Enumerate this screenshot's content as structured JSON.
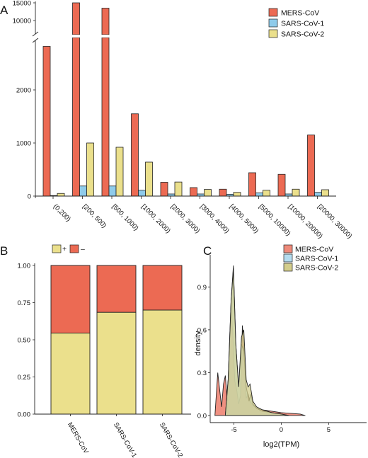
{
  "colors": {
    "MERS-CoV": "#ec6a53",
    "SARS-CoV-1": "#8fcbea",
    "SARS-CoV-2": "#ebe08c",
    "density_MERS-CoV": "#ee8a7a",
    "density_SARS-CoV-1": "#b4dcef",
    "density_SARS-CoV-2": "#d3cd8c"
  },
  "chart_data": [
    {
      "panel": "A",
      "type": "bar",
      "categories": [
        "(0,200)",
        "[200, 500)",
        "[500, 1000)",
        "[1000, 2000)",
        "[2000, 3000)",
        "[3000, 4000)",
        "[4000, 5000)",
        "[5000, 10000)",
        "[10000, 20000)",
        "[20000, 30000)"
      ],
      "series": [
        {
          "name": "MERS-CoV",
          "values": [
            2820,
            15000,
            13500,
            1550,
            260,
            160,
            130,
            440,
            410,
            1150
          ]
        },
        {
          "name": "SARS-CoV-1",
          "values": [
            10,
            190,
            190,
            110,
            40,
            40,
            35,
            60,
            40,
            70
          ]
        },
        {
          "name": "SARS-CoV-2",
          "values": [
            50,
            1000,
            920,
            640,
            265,
            125,
            70,
            110,
            130,
            120
          ]
        }
      ],
      "y_ticks_lower": [
        "0",
        "1000",
        "2000"
      ],
      "y_ticks_upper": [
        "10000",
        "15000"
      ],
      "axis_break": true,
      "ylim_lower": [
        0,
        3000
      ],
      "ylim_upper": [
        8000,
        15500
      ],
      "legend_position": "top-right"
    },
    {
      "panel": "B",
      "type": "bar",
      "stacked": true,
      "categories": [
        "MERS-CoV",
        "SARS-CoV-1",
        "SARS-CoV-2"
      ],
      "series": [
        {
          "name": "+",
          "values": [
            0.545,
            0.685,
            0.7
          ]
        },
        {
          "name": "-",
          "values": [
            0.455,
            0.315,
            0.3
          ]
        }
      ],
      "y_ticks": [
        "0.00",
        "0.25",
        "0.50",
        "0.75",
        "1.00"
      ],
      "ylim": [
        0,
        1
      ],
      "legend_position": "top"
    },
    {
      "panel": "C",
      "type": "area",
      "xlabel": "log2(TPM)",
      "ylabel": "density",
      "x_ticks": [
        "-5",
        "0",
        "5"
      ],
      "y_ticks": [
        "0.0",
        "0.3",
        "0.6",
        "0.9"
      ],
      "xlim": [
        -7.5,
        9
      ],
      "ylim": [
        -0.03,
        1.1
      ],
      "legend_position": "top-right",
      "series": [
        {
          "name": "MERS-CoV",
          "x": [
            -7.0,
            -6.7,
            -6.5,
            -6.3,
            -6.1,
            -5.9,
            -5.7,
            -5.5,
            -5.3,
            -5.1,
            -4.9,
            -4.7,
            -4.5,
            -4.3,
            -4.1,
            -3.9,
            -3.7,
            -3.5,
            -3.3,
            -3.0,
            -2.6,
            -2.0,
            -1.0,
            0.0,
            1.0,
            2.0,
            2.5
          ],
          "y": [
            0,
            0.3,
            0.18,
            0.06,
            0.22,
            0.28,
            0.1,
            0.28,
            0.78,
            0.55,
            0.24,
            0.18,
            0.08,
            0.14,
            0.63,
            0.42,
            0.12,
            0.15,
            0.1,
            0.07,
            0.05,
            0.04,
            0.03,
            0.02,
            0.015,
            0.01,
            0.0
          ]
        },
        {
          "name": "SARS-CoV-1",
          "x": [
            -5.9,
            -5.6,
            -5.3,
            -5.05,
            -4.8,
            -4.5,
            -4.2,
            -3.95,
            -3.7,
            -3.4,
            -3.2,
            -3.0,
            -2.6,
            -2.0,
            -1.0,
            0.0,
            0.8
          ],
          "y": [
            0,
            0.25,
            0.8,
            1.05,
            0.5,
            0.2,
            0.5,
            0.45,
            0.2,
            0.1,
            0.15,
            0.08,
            0.05,
            0.03,
            0.02,
            0.01,
            0.0
          ]
        },
        {
          "name": "SARS-CoV-2",
          "x": [
            -5.9,
            -5.6,
            -5.3,
            -5.05,
            -4.8,
            -4.5,
            -4.2,
            -3.95,
            -3.7,
            -3.5,
            -3.3,
            -3.0,
            -2.6,
            -2.0,
            -1.0,
            0.0,
            0.8
          ],
          "y": [
            0,
            0.25,
            0.8,
            1.03,
            0.5,
            0.2,
            0.55,
            0.6,
            0.25,
            0.2,
            0.22,
            0.1,
            0.06,
            0.04,
            0.02,
            0.01,
            0.0
          ]
        }
      ]
    }
  ],
  "labels": {
    "panel_a": "A",
    "panel_b": "B",
    "panel_c": "C",
    "plus": "+",
    "minus": "–"
  }
}
